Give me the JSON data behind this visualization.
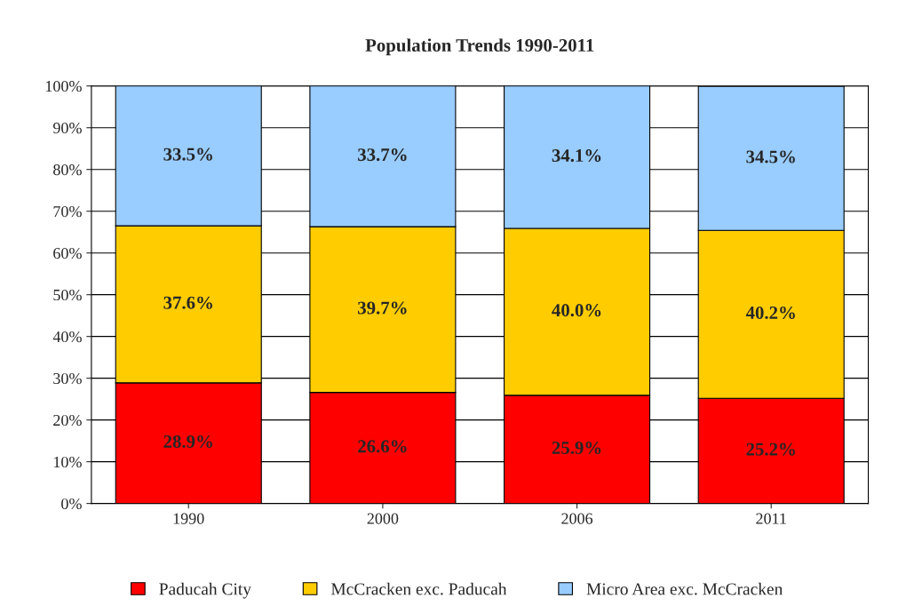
{
  "chart_data": {
    "type": "bar",
    "title": "Population Trends 1990-2011",
    "categories": [
      "1990",
      "2000",
      "2006",
      "2011"
    ],
    "stacked": true,
    "series": [
      {
        "name": "Paducah City",
        "color": "#ff0000",
        "values": [
          28.9,
          26.6,
          25.9,
          25.2
        ],
        "value_labels": [
          "28.9%",
          "26.6%",
          "25.9%",
          "25.2%"
        ]
      },
      {
        "name": "McCracken exc. Paducah",
        "color": "#ffcc00",
        "values": [
          37.6,
          39.7,
          40.0,
          40.2
        ],
        "value_labels": [
          "37.6%",
          "39.7%",
          "40.0%",
          "40.2%"
        ]
      },
      {
        "name": "Micro Area exc. McCracken",
        "color": "#99ccff",
        "values": [
          33.5,
          33.7,
          34.1,
          34.5
        ],
        "value_labels": [
          "33.5%",
          "33.7%",
          "34.1%",
          "34.5%"
        ]
      }
    ],
    "ylim": [
      0,
      100
    ],
    "yticks": [
      {
        "value": 0,
        "label": "0%"
      },
      {
        "value": 10,
        "label": "10%"
      },
      {
        "value": 20,
        "label": "20%"
      },
      {
        "value": 30,
        "label": "30%"
      },
      {
        "value": 40,
        "label": "40%"
      },
      {
        "value": 50,
        "label": "50%"
      },
      {
        "value": 60,
        "label": "60%"
      },
      {
        "value": 70,
        "label": "70%"
      },
      {
        "value": 80,
        "label": "80%"
      },
      {
        "value": 90,
        "label": "90%"
      },
      {
        "value": 100,
        "label": "100%"
      }
    ],
    "grid": "y",
    "legend": "bottom"
  }
}
